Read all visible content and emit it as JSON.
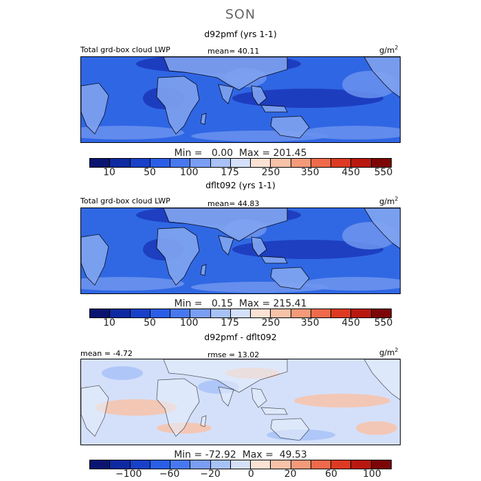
{
  "season": "SON",
  "panels": [
    {
      "title": "d92pmf (yrs 1-1)",
      "label": "Total grd-box cloud LWP",
      "stat": "mean=  40.11",
      "unit": "g/m",
      "unit_sup": "2",
      "minmax": "Min =   0.00  Max = 201.45",
      "palette": [
        "#0a1470",
        "#0d2aa0",
        "#1840c8",
        "#2a5ee6",
        "#4878f0",
        "#7a9ef4",
        "#a8c2f7",
        "#d4e0fa",
        "#fbe2d4",
        "#f8c2a8",
        "#f49a7a",
        "#ee6a4a",
        "#dc3a22",
        "#b81810",
        "#7c0606"
      ],
      "ticks": [
        "10",
        "50",
        "100",
        "175",
        "250",
        "350",
        "450",
        "550"
      ],
      "map_colors": {
        "ocean": "#2f66e4",
        "high": "#6a92ef",
        "low": "#1a36b8",
        "land": "#7fa2f0"
      }
    },
    {
      "title": "dflt092 (yrs 1-1)",
      "label": "Total grd-box cloud LWP",
      "stat": "mean=  44.83",
      "unit": "g/m",
      "unit_sup": "2",
      "minmax": "Min =   0.15  Max = 215.41",
      "palette": [
        "#0a1470",
        "#0d2aa0",
        "#1840c8",
        "#2a5ee6",
        "#4878f0",
        "#7a9ef4",
        "#a8c2f7",
        "#d4e0fa",
        "#fbe2d4",
        "#f8c2a8",
        "#f49a7a",
        "#ee6a4a",
        "#dc3a22",
        "#b81810",
        "#7c0606"
      ],
      "ticks": [
        "10",
        "50",
        "100",
        "175",
        "250",
        "350",
        "450",
        "550"
      ],
      "map_colors": {
        "ocean": "#3068e4",
        "high": "#6e95ef",
        "low": "#1a38ba",
        "land": "#82a5f1"
      }
    },
    {
      "title": "d92pmf - dflt092",
      "stat_left": "mean =  -4.72",
      "stat_mid": "rmse =  13.02",
      "unit": "g/m",
      "unit_sup": "2",
      "minmax": "Min = -72.92  Max =  49.53",
      "palette": [
        "#0a1470",
        "#0d2aa0",
        "#1840c8",
        "#2a5ee6",
        "#4878f0",
        "#7a9ef4",
        "#a8c2f7",
        "#d4e0fa",
        "#fbe2d4",
        "#f8c2a8",
        "#f49a7a",
        "#ee6a4a",
        "#dc3a22",
        "#b81810",
        "#7c0606"
      ],
      "ticks": [
        "-100",
        "-60",
        "-20",
        "0",
        "20",
        "60",
        "100"
      ],
      "map_colors": {
        "ocean": "#d4e0fa",
        "high": "#f8c2a8",
        "low": "#a8c2f7",
        "land": "#e6eefc"
      }
    }
  ]
}
